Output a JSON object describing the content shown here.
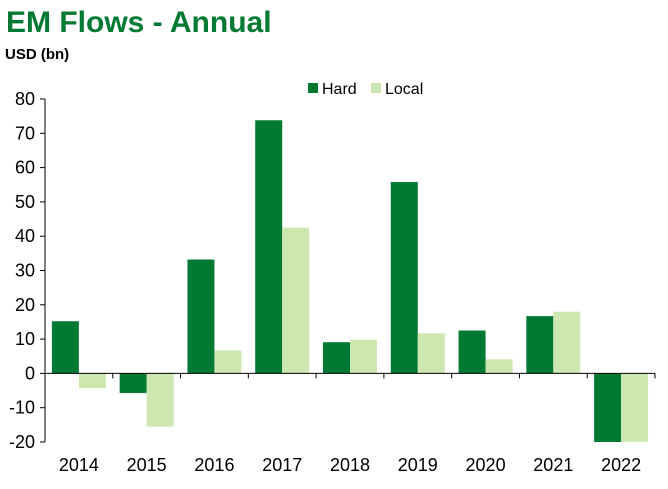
{
  "chart_data": {
    "type": "bar",
    "title": "EM Flows - Annual",
    "ylabel": "USD (bn)",
    "xlabel": "",
    "categories": [
      "2014",
      "2015",
      "2016",
      "2017",
      "2018",
      "2019",
      "2020",
      "2021",
      "2022"
    ],
    "series": [
      {
        "name": "Hard",
        "color": "#007a33",
        "values": [
          15.2,
          -5.7,
          33.2,
          73.8,
          9.1,
          55.8,
          12.5,
          16.7,
          -20.0
        ]
      },
      {
        "name": "Local",
        "color": "#cce8b0",
        "values": [
          -4.3,
          -15.5,
          6.7,
          42.5,
          9.8,
          11.7,
          4.1,
          18.0,
          -20.0
        ]
      }
    ],
    "ylim": [
      -20,
      80
    ],
    "yticks": [
      "80",
      "70",
      "60",
      "50",
      "40",
      "30",
      "20",
      "10",
      "0",
      "-10",
      "-20"
    ],
    "legend_position": "top-center",
    "grid": false,
    "title_color": "#007a33"
  }
}
